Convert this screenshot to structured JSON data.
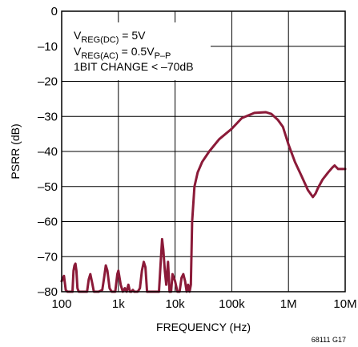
{
  "chart_data": {
    "type": "line",
    "title": "",
    "xlabel": "FREQUENCY (Hz)",
    "ylabel": "PSRR (dB)",
    "x_scale": "log",
    "xlim": [
      100,
      10000000
    ],
    "ylim": [
      -80,
      0
    ],
    "grid": true,
    "x_ticks": [
      {
        "value": 100,
        "label": "100"
      },
      {
        "value": 1000,
        "label": "1k"
      },
      {
        "value": 10000,
        "label": "10k"
      },
      {
        "value": 100000,
        "label": "100k"
      },
      {
        "value": 1000000,
        "label": "1M"
      },
      {
        "value": 10000000,
        "label": "10M"
      }
    ],
    "y_ticks": [
      {
        "value": 0,
        "label": "0"
      },
      {
        "value": -10,
        "label": "–10"
      },
      {
        "value": -20,
        "label": "–20"
      },
      {
        "value": -30,
        "label": "–30"
      },
      {
        "value": -40,
        "label": "–40"
      },
      {
        "value": -50,
        "label": "–50"
      },
      {
        "value": -60,
        "label": "–60"
      },
      {
        "value": -70,
        "label": "–70"
      },
      {
        "value": -80,
        "label": "–80"
      }
    ],
    "line_color": "#8b1a38",
    "annotations": {
      "l1_main": "V",
      "l1_sub": "REG(DC)",
      "l1_rest": " = 5V",
      "l2_main": "V",
      "l2_sub": "REG(AC)",
      "l2_mid": " = 0.5V",
      "l2_sub2": "P–P",
      "l3": "1BIT CHANGE < –70dB"
    },
    "figure_code": "68111 G17",
    "series": [
      {
        "x": [
          100,
          110,
          118,
          126,
          132,
          155,
          162,
          168,
          175,
          182,
          190,
          200,
          240,
          280,
          300,
          320,
          345,
          370,
          400,
          450,
          520,
          560,
          600,
          640,
          700,
          760,
          820,
          880,
          960,
          1000,
          1100,
          1200,
          1300,
          1400,
          1500,
          1600,
          1700,
          1800,
          1900,
          2000,
          2200,
          2400,
          2600,
          2800,
          3000,
          3200,
          3400,
          3600,
          3800,
          4000,
          4400,
          4800,
          5200,
          5600,
          5900,
          6200,
          6600,
          7000,
          7500,
          8000,
          8500,
          9000,
          10000,
          11000,
          12000,
          13000,
          14000,
          15000,
          16000,
          17000,
          18000,
          19000,
          20000,
          22000,
          25000,
          30000,
          40000,
          60000,
          100000,
          150000,
          250000,
          400000,
          500000,
          650000,
          800000,
          1000000,
          1300000,
          1700000,
          2200000,
          2700000,
          3000000,
          3300000,
          4000000,
          5000000,
          6000000,
          6500000,
          7500000,
          9000000,
          10000000
        ],
        "y": [
          -77,
          -75.5,
          -79.5,
          -80,
          -80,
          -80,
          -74,
          -72.5,
          -72,
          -74,
          -79,
          -80,
          -80,
          -80,
          -76.5,
          -75,
          -77.5,
          -80,
          -80,
          -80,
          -79.5,
          -76,
          -72.5,
          -74,
          -79,
          -80,
          -80,
          -80,
          -75,
          -74,
          -78,
          -80,
          -79,
          -80,
          -78,
          -80,
          -80,
          -79.5,
          -80,
          -80,
          -80,
          -79,
          -74,
          -71.5,
          -73,
          -80,
          -80,
          -80,
          -80,
          -80,
          -80,
          -80,
          -80,
          -71,
          -65,
          -68,
          -74,
          -78,
          -71.5,
          -80,
          -80,
          -75,
          -77,
          -80,
          -80,
          -76,
          -75,
          -77,
          -80,
          -78,
          -80,
          -78,
          -60,
          -50,
          -46,
          -43,
          -40,
          -36.5,
          -33.5,
          -30.5,
          -29,
          -28.8,
          -29.3,
          -31,
          -33,
          -38,
          -43,
          -47,
          -51,
          -53,
          -52,
          -50.5,
          -48,
          -46,
          -44.5,
          -44,
          -45,
          -45,
          -45
        ]
      }
    ]
  }
}
